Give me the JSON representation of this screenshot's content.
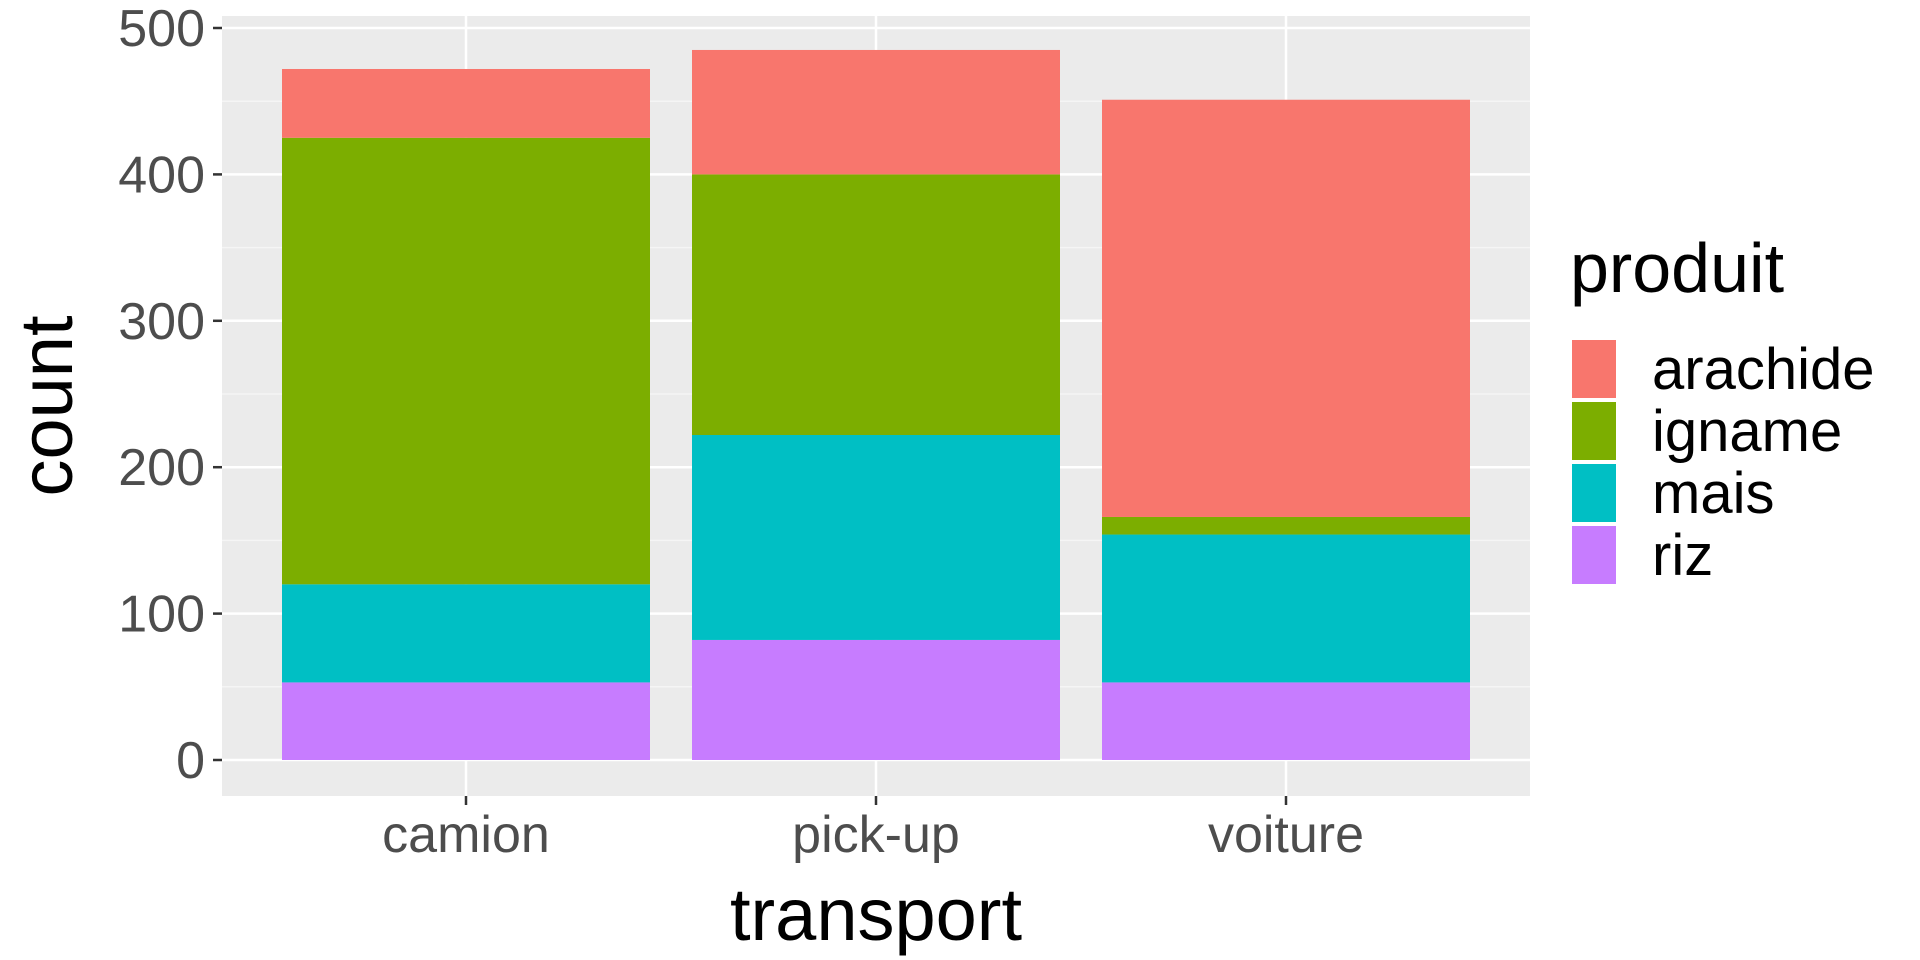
{
  "chart_data": {
    "type": "bar",
    "stacked": true,
    "xlabel": "transport",
    "ylabel": "count",
    "categories": [
      "camion",
      "pick-up",
      "voiture"
    ],
    "ylim": [
      0,
      500
    ],
    "yticks": [
      0,
      100,
      200,
      300,
      400,
      500
    ],
    "grid": true,
    "legend": {
      "title": "produit",
      "placement": "right"
    },
    "series": [
      {
        "name": "riz",
        "color": "#C77CFF",
        "values": [
          53,
          82,
          53
        ]
      },
      {
        "name": "mais",
        "color": "#00BFC4",
        "values": [
          67,
          140,
          101
        ]
      },
      {
        "name": "igname",
        "color": "#7CAE00",
        "values": [
          305,
          178,
          12
        ]
      },
      {
        "name": "arachide",
        "color": "#F8766D",
        "values": [
          47,
          85,
          285
        ]
      }
    ],
    "legend_order": [
      "arachide",
      "igname",
      "mais",
      "riz"
    ],
    "colors": {
      "panel": "#EBEBEB",
      "grid_major": "#FFFFFF",
      "grid_minor": "#F5F5F5"
    }
  }
}
